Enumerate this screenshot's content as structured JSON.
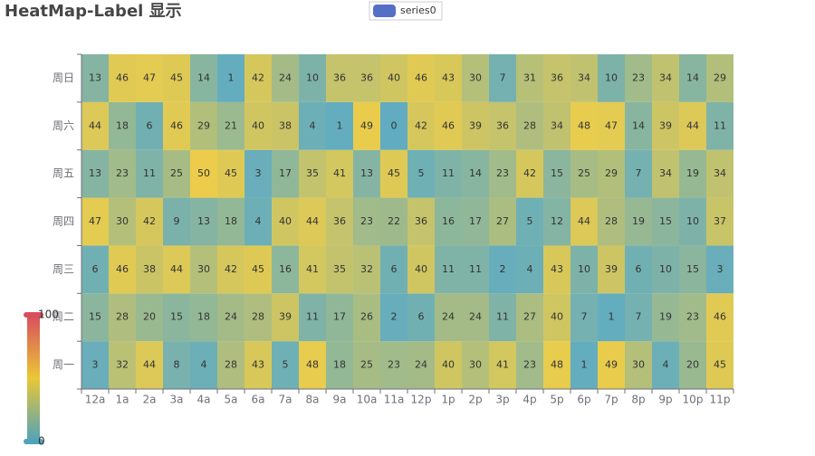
{
  "chart_data": {
    "type": "heatmap",
    "title": "HeatMap-Label 显示",
    "series": [
      {
        "name": "series0",
        "color": "#5470c6"
      }
    ],
    "x_categories": [
      "12a",
      "1a",
      "2a",
      "3a",
      "4a",
      "5a",
      "6a",
      "7a",
      "8a",
      "9a",
      "10a",
      "11a",
      "12p",
      "1p",
      "2p",
      "3p",
      "4p",
      "5p",
      "6p",
      "7p",
      "8p",
      "9p",
      "10p",
      "11p"
    ],
    "y_categories": [
      "周一",
      "周二",
      "周三",
      "周四",
      "周五",
      "周六",
      "周日"
    ],
    "values": [
      [
        3,
        32,
        44,
        8,
        4,
        28,
        43,
        5,
        48,
        18,
        25,
        23,
        24,
        40,
        30,
        41,
        23,
        48,
        1,
        49,
        30,
        4,
        20,
        45
      ],
      [
        15,
        28,
        20,
        15,
        18,
        24,
        28,
        39,
        11,
        17,
        26,
        2,
        6,
        24,
        24,
        11,
        27,
        40,
        7,
        1,
        7,
        19,
        23,
        46
      ],
      [
        6,
        46,
        38,
        44,
        30,
        42,
        45,
        16,
        41,
        35,
        32,
        6,
        40,
        11,
        11,
        2,
        4,
        43,
        10,
        39,
        6,
        10,
        15,
        3
      ],
      [
        47,
        30,
        42,
        9,
        13,
        18,
        4,
        40,
        44,
        36,
        23,
        22,
        36,
        16,
        17,
        27,
        5,
        12,
        44,
        28,
        19,
        15,
        10,
        37
      ],
      [
        13,
        23,
        11,
        25,
        50,
        45,
        3,
        17,
        35,
        41,
        13,
        45,
        5,
        11,
        14,
        23,
        42,
        15,
        25,
        29,
        7,
        34,
        19,
        34
      ],
      [
        44,
        18,
        6,
        46,
        29,
        21,
        40,
        38,
        4,
        1,
        49,
        0,
        42,
        46,
        39,
        36,
        28,
        34,
        48,
        47,
        14,
        39,
        44,
        11
      ],
      [
        13,
        46,
        47,
        45,
        14,
        1,
        42,
        24,
        10,
        36,
        36,
        40,
        46,
        43,
        30,
        7,
        31,
        36,
        34,
        10,
        23,
        34,
        14,
        29
      ]
    ],
    "visual_map": {
      "range": [
        0,
        100
      ],
      "colors": [
        "#50a3ba",
        "#eac736",
        "#d94e5d"
      ]
    }
  }
}
